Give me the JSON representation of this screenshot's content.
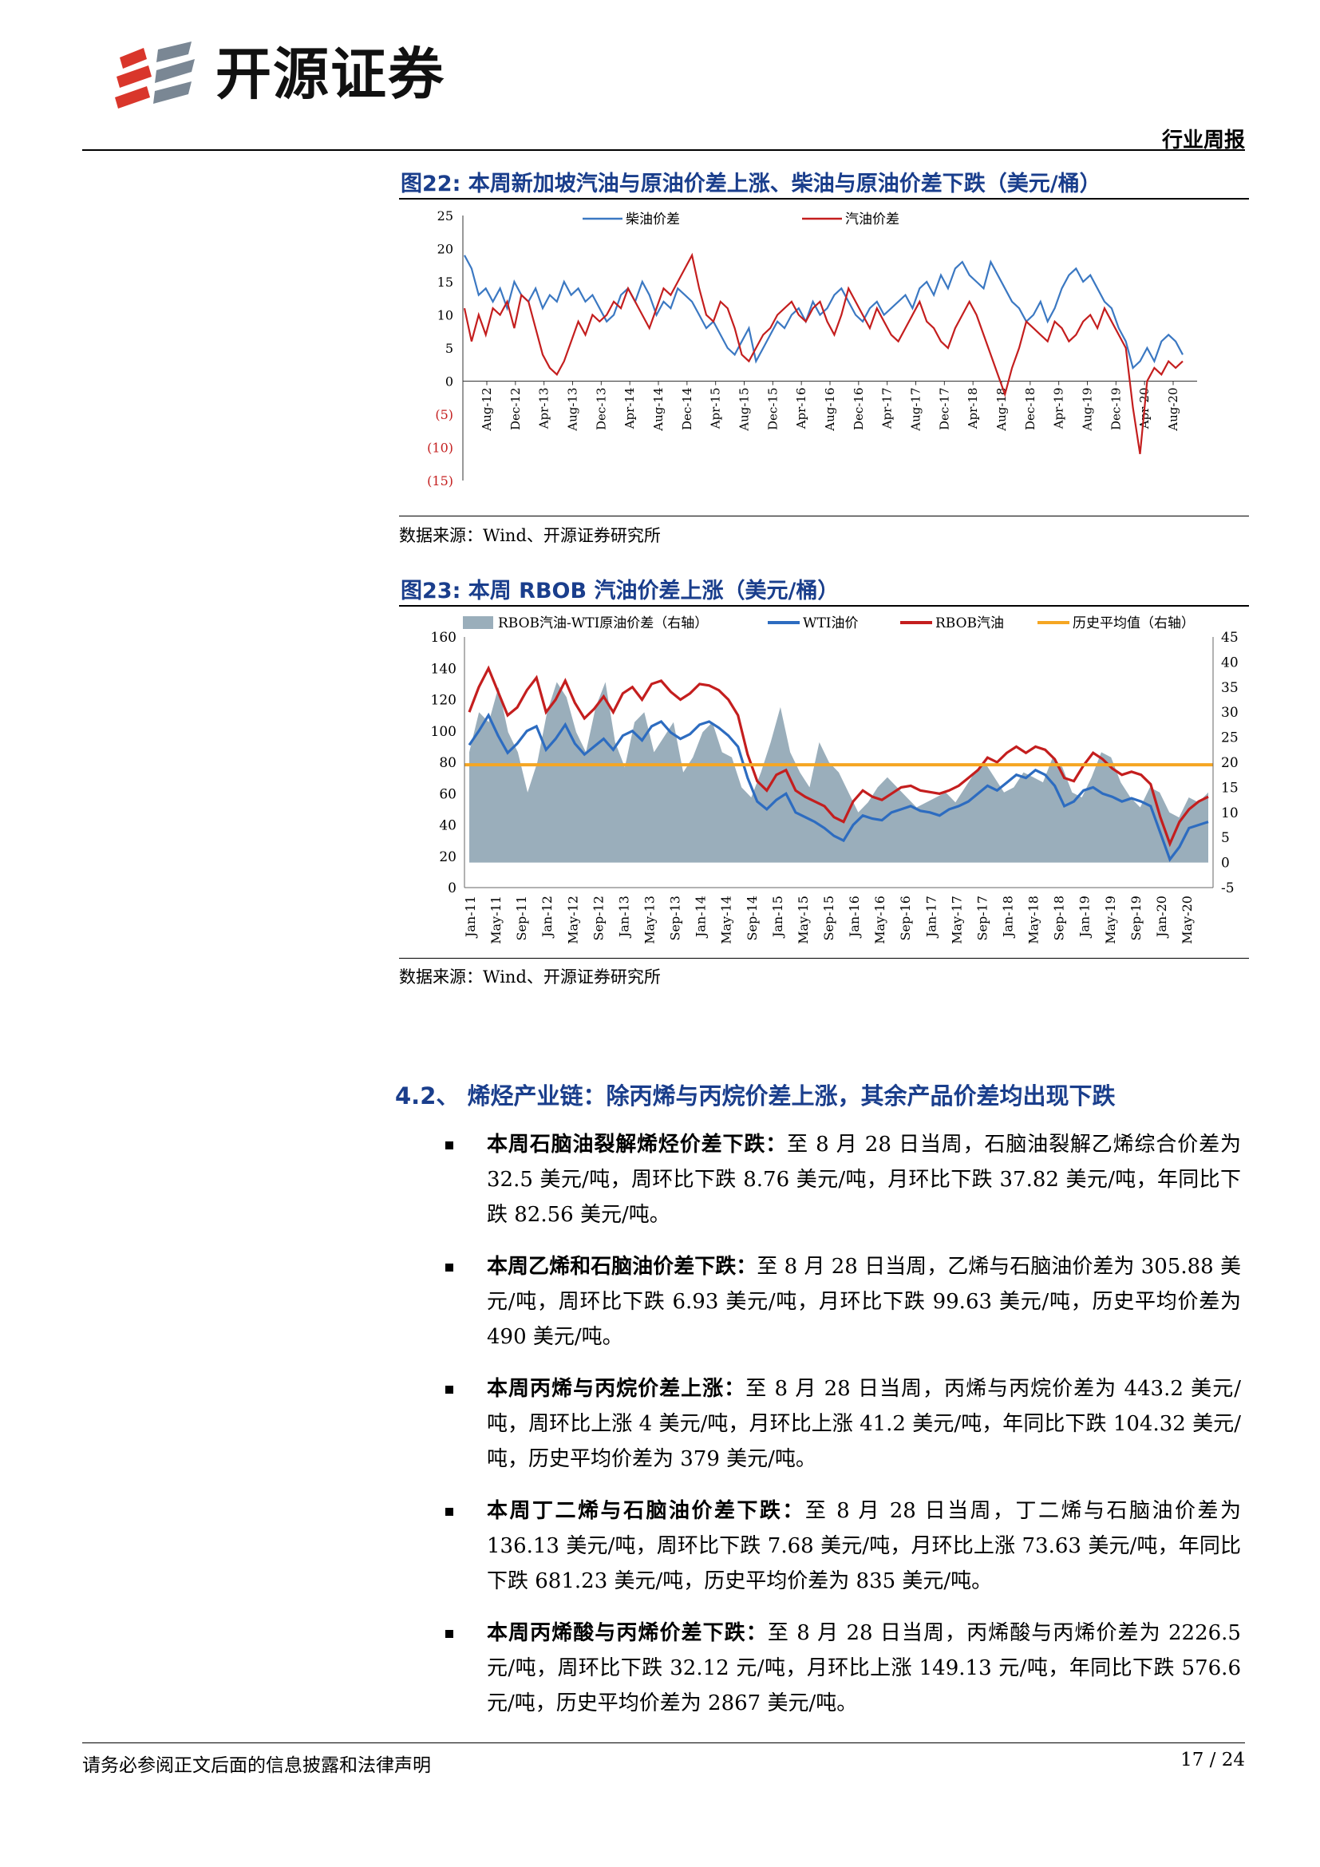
{
  "header": {
    "brand": "开源证券",
    "label": "行业周报"
  },
  "figure22": {
    "title": "图22:  本周新加坡汽油与原油价差上涨、柴油与原油价差下跌（美元/桶）",
    "source": "数据来源：Wind、开源证券研究所",
    "chart_data": {
      "type": "line",
      "legend": [
        "柴油价差",
        "汽油价差"
      ],
      "yticks": [
        "25",
        "20",
        "15",
        "10",
        "5",
        "0",
        "(5)",
        "(10)",
        "(15)"
      ],
      "ylim": [
        -15,
        25
      ],
      "xticks": [
        "Aug-12",
        "Dec-12",
        "Apr-13",
        "Aug-13",
        "Dec-13",
        "Apr-14",
        "Aug-14",
        "Dec-14",
        "Apr-15",
        "Aug-15",
        "Dec-15",
        "Apr-16",
        "Aug-16",
        "Dec-16",
        "Apr-17",
        "Aug-17",
        "Dec-17",
        "Apr-18",
        "Aug-18",
        "Dec-18",
        "Apr-19",
        "Aug-19",
        "Dec-19",
        "Apr-20",
        "Aug-20"
      ],
      "series": [
        {
          "name": "柴油价差",
          "color": "#3b78c2",
          "values": [
            19,
            17,
            13,
            14,
            12,
            14,
            11,
            15,
            13,
            12,
            14,
            11,
            13,
            12,
            15,
            13,
            14,
            12,
            13,
            11,
            9,
            10,
            13,
            14,
            12,
            15,
            13,
            10,
            12,
            11,
            14,
            13,
            12,
            10,
            8,
            9,
            7,
            5,
            4,
            6,
            8,
            3,
            5,
            7,
            9,
            8,
            10,
            11,
            9,
            12,
            10,
            11,
            13,
            14,
            12,
            10,
            9,
            11,
            12,
            10,
            11,
            12,
            13,
            11,
            14,
            15,
            13,
            16,
            14,
            17,
            18,
            16,
            15,
            14,
            18,
            16,
            14,
            12,
            11,
            9,
            10,
            12,
            9,
            11,
            14,
            16,
            17,
            15,
            16,
            14,
            12,
            11,
            8,
            6,
            2,
            3,
            5,
            3,
            6,
            7,
            6,
            4
          ]
        },
        {
          "name": "汽油价差",
          "color": "#c41e1e",
          "values": [
            11,
            6,
            10,
            7,
            11,
            10,
            12,
            8,
            13,
            12,
            8,
            4,
            2,
            1,
            3,
            6,
            9,
            7,
            10,
            9,
            10,
            12,
            11,
            14,
            12,
            10,
            8,
            11,
            14,
            13,
            15,
            17,
            19,
            14,
            10,
            9,
            12,
            11,
            8,
            4,
            3,
            5,
            7,
            8,
            10,
            11,
            12,
            10,
            9,
            11,
            12,
            9,
            7,
            10,
            14,
            12,
            10,
            8,
            11,
            9,
            7,
            6,
            8,
            10,
            12,
            9,
            8,
            6,
            5,
            8,
            10,
            12,
            10,
            7,
            4,
            1,
            -2,
            2,
            5,
            9,
            8,
            7,
            6,
            9,
            8,
            6,
            7,
            9,
            10,
            8,
            11,
            9,
            7,
            5,
            -4,
            -11,
            0,
            2,
            1,
            3,
            2,
            3
          ]
        }
      ]
    }
  },
  "figure23": {
    "title": "图23:  本周 RBOB 汽油价差上涨（美元/桶）",
    "source": "数据来源：Wind、开源证券研究所",
    "chart_data": {
      "type": "line",
      "legend": [
        "RBOB汽油-WTI原油价差（右轴）",
        "WTI油价",
        "RBOB汽油",
        "历史平均值（右轴）"
      ],
      "yticks_left": [
        "160",
        "140",
        "120",
        "100",
        "80",
        "60",
        "40",
        "20",
        "0"
      ],
      "yticks_right": [
        "45",
        "40",
        "35",
        "30",
        "25",
        "20",
        "15",
        "10",
        "5",
        "0",
        "-5"
      ],
      "ylim_left": [
        0,
        160
      ],
      "ylim_right": [
        -5,
        45
      ],
      "xticks": [
        "Jan-11",
        "May-11",
        "Sep-11",
        "Jan-12",
        "May-12",
        "Sep-12",
        "Jan-13",
        "May-13",
        "Sep-13",
        "Jan-14",
        "May-14",
        "Sep-14",
        "Jan-15",
        "May-15",
        "Sep-15",
        "Jan-16",
        "May-16",
        "Sep-16",
        "Jan-17",
        "May-17",
        "Sep-17",
        "Jan-18",
        "May-18",
        "Sep-18",
        "Jan-19",
        "May-19",
        "Sep-19",
        "Jan-20",
        "May-20"
      ],
      "series": [
        {
          "name": "RBOB汽油-WTI原油价差（右轴）",
          "color": "#9aaebb",
          "values": [
            22,
            30,
            28,
            35,
            26,
            22,
            14,
            20,
            30,
            36,
            33,
            26,
            22,
            31,
            36,
            24,
            19,
            28,
            30,
            22,
            25,
            28,
            18,
            21,
            26,
            28,
            22,
            21,
            15,
            13,
            18,
            24,
            31,
            22,
            18,
            15,
            24,
            20,
            18,
            14,
            10,
            12,
            15,
            17,
            15,
            13,
            11,
            12,
            13,
            14,
            12,
            15,
            18,
            20,
            17,
            14,
            15,
            18,
            17,
            16,
            21,
            19,
            14,
            13,
            17,
            22,
            21,
            16,
            13,
            11,
            15,
            14,
            10,
            9,
            13,
            12,
            14
          ]
        },
        {
          "name": "WTI油价",
          "color": "#2d6cc0",
          "values": [
            91,
            100,
            110,
            97,
            86,
            92,
            100,
            103,
            88,
            95,
            104,
            92,
            85,
            90,
            95,
            88,
            97,
            100,
            94,
            103,
            106,
            99,
            95,
            98,
            104,
            106,
            102,
            97,
            90,
            70,
            55,
            50,
            56,
            60,
            48,
            45,
            42,
            38,
            33,
            30,
            40,
            46,
            44,
            43,
            48,
            50,
            52,
            49,
            48,
            46,
            50,
            52,
            55,
            60,
            65,
            62,
            67,
            72,
            70,
            75,
            72,
            65,
            52,
            55,
            62,
            64,
            60,
            58,
            55,
            57,
            55,
            52,
            35,
            18,
            26,
            38,
            40,
            42
          ]
        },
        {
          "name": "RBOB汽油",
          "color": "#c41e1e",
          "values": [
            112,
            128,
            140,
            125,
            110,
            115,
            126,
            134,
            112,
            120,
            132,
            118,
            108,
            114,
            122,
            112,
            124,
            128,
            120,
            130,
            132,
            125,
            120,
            124,
            130,
            129,
            126,
            120,
            110,
            85,
            68,
            62,
            72,
            75,
            62,
            58,
            55,
            52,
            45,
            42,
            55,
            62,
            58,
            56,
            60,
            64,
            65,
            62,
            61,
            60,
            62,
            65,
            70,
            75,
            83,
            80,
            86,
            90,
            86,
            90,
            88,
            82,
            70,
            68,
            78,
            86,
            82,
            76,
            72,
            74,
            72,
            66,
            45,
            28,
            42,
            50,
            55,
            58
          ]
        },
        {
          "name": "历史平均值（右轴）",
          "color": "#f5a623",
          "values": [
            19.5
          ]
        }
      ]
    }
  },
  "section": {
    "heading": "4.2、  烯烃产业链：除丙烯与丙烷价差上涨，其余产品价差均出现下跌",
    "bullets": [
      {
        "bold": "本周石脑油裂解烯烃价差下跌：",
        "text": "至 8 月 28 日当周，石脑油裂解乙烯综合价差为 32.5 美元/吨，周环比下跌 8.76 美元/吨，月环比下跌 37.82 美元/吨，年同比下跌 82.56 美元/吨。"
      },
      {
        "bold": "本周乙烯和石脑油价差下跌：",
        "text": "至 8 月 28 日当周，乙烯与石脑油价差为 305.88 美元/吨，周环比下跌 6.93 美元/吨，月环比下跌 99.63 美元/吨，历史平均价差为 490 美元/吨。"
      },
      {
        "bold": "本周丙烯与丙烷价差上涨：",
        "text": "至 8 月 28 日当周，丙烯与丙烷价差为 443.2 美元/吨，周环比上涨 4 美元/吨，月环比上涨 41.2 美元/吨，年同比下跌 104.32 美元/吨，历史平均价差为 379 美元/吨。"
      },
      {
        "bold": "本周丁二烯与石脑油价差下跌：",
        "text": "至 8 月 28 日当周，丁二烯与石脑油价差为 136.13 美元/吨，周环比下跌 7.68 美元/吨，月环比上涨 73.63 美元/吨，年同比下跌 681.23 美元/吨，历史平均价差为 835 美元/吨。"
      },
      {
        "bold": "本周丙烯酸与丙烯价差下跌：",
        "text": "至 8 月 28 日当周，丙烯酸与丙烯价差为 2226.5 元/吨，周环比下跌 32.12 元/吨，月环比上涨 149.13 元/吨，年同比下跌 576.6 元/吨，历史平均价差为 2867 美元/吨。"
      }
    ]
  },
  "footer": {
    "note": "请务必参阅正文后面的信息披露和法律声明",
    "page": "17 / 24"
  }
}
